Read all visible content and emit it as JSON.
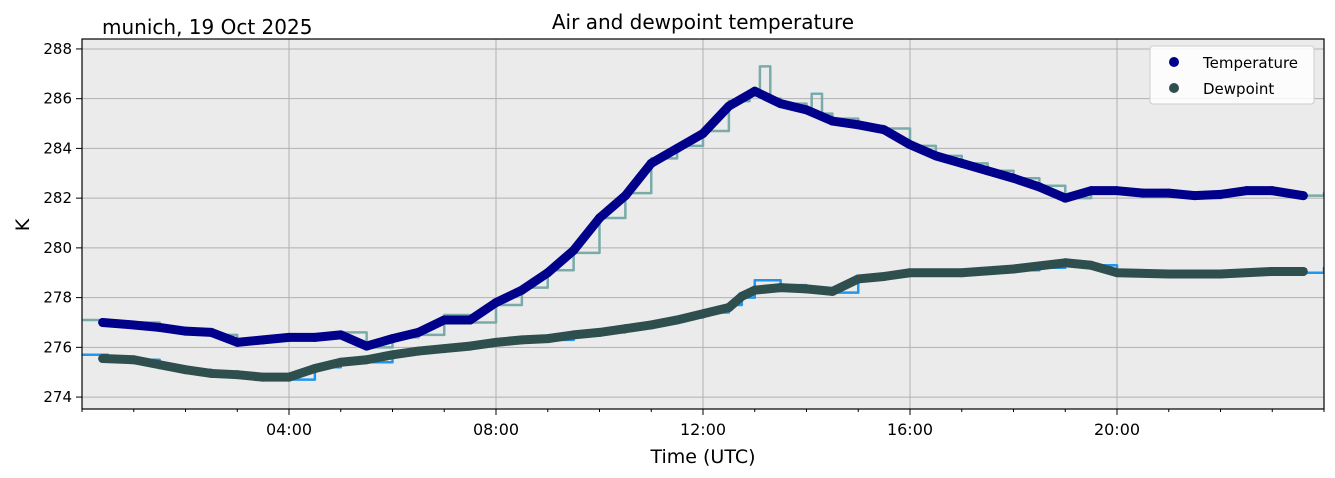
{
  "chart_data": {
    "type": "line",
    "title": "Air and dewpoint temperature",
    "subtitle": "munich, 19 Oct 2025",
    "xlabel": "Time (UTC)",
    "ylabel": "K",
    "xlim": [
      0,
      24
    ],
    "ylim": [
      273.52,
      288.4
    ],
    "grid": true,
    "legend_position": "top-right",
    "x_ticks": [
      {
        "v": 4,
        "label": "04:00"
      },
      {
        "v": 8,
        "label": "08:00"
      },
      {
        "v": 12,
        "label": "12:00"
      },
      {
        "v": 16,
        "label": "16:00"
      },
      {
        "v": 20,
        "label": "20:00"
      }
    ],
    "y_ticks": [
      {
        "v": 274,
        "label": "274"
      },
      {
        "v": 276,
        "label": "276"
      },
      {
        "v": 278,
        "label": "278"
      },
      {
        "v": 280,
        "label": "280"
      },
      {
        "v": 282,
        "label": "282"
      },
      {
        "v": 284,
        "label": "284"
      },
      {
        "v": 286,
        "label": "286"
      },
      {
        "v": 288,
        "label": "288"
      }
    ],
    "series": [
      {
        "name": "Temperature raw",
        "color": "#79abab",
        "legend": false,
        "x": [
          0,
          0.5,
          1,
          1.5,
          2,
          2.5,
          3,
          3.5,
          4,
          4.5,
          5,
          5.5,
          6,
          6.5,
          7,
          7.5,
          8,
          8.5,
          9,
          9.5,
          10,
          10.5,
          11,
          11.5,
          12,
          12.5,
          12.9,
          13.1,
          13.3,
          13.5,
          14,
          14.1,
          14.3,
          14.5,
          15,
          15.5,
          16,
          16.5,
          17,
          17.5,
          18,
          18.5,
          19,
          19.5,
          20,
          20.5,
          21,
          21.5,
          22,
          22.5,
          23,
          23.5,
          24
        ],
        "y": [
          277.1,
          277.0,
          277.0,
          276.7,
          276.7,
          276.5,
          276.2,
          276.4,
          276.4,
          276.4,
          276.6,
          276.0,
          276.4,
          276.5,
          277.3,
          277.0,
          277.7,
          278.4,
          279.1,
          279.8,
          281.2,
          282.2,
          283.6,
          284.1,
          284.7,
          285.9,
          286.2,
          287.3,
          286.0,
          285.8,
          285.6,
          286.2,
          285.4,
          285.2,
          284.9,
          284.8,
          284.1,
          283.7,
          283.4,
          283.1,
          282.8,
          282.5,
          282.0,
          282.3,
          282.3,
          282.2,
          282.2,
          282.0,
          282.2,
          282.3,
          282.2,
          282.1,
          282.2
        ]
      },
      {
        "name": "Dewpoint raw",
        "color": "#2196f0",
        "legend": false,
        "x": [
          0,
          0.5,
          1,
          1.5,
          2,
          2.5,
          3,
          3.5,
          4,
          4.5,
          5,
          5.5,
          6,
          6.5,
          7,
          7.5,
          8,
          8.5,
          9,
          9.5,
          10,
          10.5,
          11,
          11.5,
          12,
          12.5,
          12.75,
          13,
          13.5,
          14,
          14.5,
          15,
          15.5,
          16,
          16.5,
          17,
          17.5,
          18,
          18.5,
          19,
          19.5,
          20,
          20.5,
          21,
          21.5,
          22,
          22.5,
          23,
          23.5,
          24
        ],
        "y": [
          275.7,
          275.5,
          275.5,
          275.2,
          275.1,
          274.9,
          274.9,
          274.7,
          274.7,
          275.2,
          275.5,
          275.4,
          275.8,
          275.9,
          276.0,
          276.1,
          276.2,
          276.4,
          276.3,
          276.6,
          276.6,
          276.8,
          277.0,
          277.2,
          277.4,
          277.7,
          278.0,
          278.7,
          278.5,
          278.3,
          278.2,
          278.8,
          278.9,
          279.0,
          279.0,
          279.0,
          279.1,
          279.1,
          279.2,
          279.4,
          279.3,
          279.0,
          279.0,
          278.9,
          278.9,
          278.9,
          279.0,
          279.0,
          279.0,
          279.2
        ]
      },
      {
        "name": "Temperature",
        "color": "#00008b",
        "legend": true,
        "x": [
          0.4,
          1,
          1.5,
          2,
          2.5,
          3,
          3.5,
          4,
          4.5,
          5,
          5.5,
          6,
          6.5,
          7,
          7.5,
          8,
          8.5,
          9,
          9.5,
          10,
          10.5,
          11,
          11.5,
          12,
          12.5,
          13,
          13.5,
          14,
          14.5,
          15,
          15.5,
          16,
          16.5,
          17,
          17.5,
          18,
          18.5,
          19,
          19.5,
          20,
          20.5,
          21,
          21.5,
          22,
          22.5,
          23,
          23.6
        ],
        "y": [
          277.0,
          276.9,
          276.8,
          276.65,
          276.6,
          276.2,
          276.3,
          276.4,
          276.4,
          276.5,
          276.05,
          276.35,
          276.6,
          277.1,
          277.1,
          277.8,
          278.3,
          279.0,
          279.9,
          281.2,
          282.1,
          283.4,
          284.0,
          284.6,
          285.7,
          286.3,
          285.8,
          285.55,
          285.1,
          284.95,
          284.75,
          284.15,
          283.7,
          283.4,
          283.1,
          282.8,
          282.45,
          282.0,
          282.3,
          282.3,
          282.2,
          282.2,
          282.1,
          282.15,
          282.3,
          282.3,
          282.1
        ]
      },
      {
        "name": "Dewpoint",
        "color": "#2f4f4f",
        "legend": true,
        "x": [
          0.4,
          1,
          1.5,
          2,
          2.5,
          3,
          3.5,
          4,
          4.5,
          5,
          5.5,
          6,
          6.5,
          7,
          7.5,
          8,
          8.5,
          9,
          9.5,
          10,
          10.5,
          11,
          11.5,
          12,
          12.5,
          12.75,
          13,
          13.5,
          14,
          14.5,
          15,
          15.5,
          16,
          17,
          18,
          19,
          19.5,
          20,
          21,
          22,
          23,
          23.6
        ],
        "y": [
          275.55,
          275.5,
          275.3,
          275.1,
          274.95,
          274.9,
          274.8,
          274.8,
          275.15,
          275.4,
          275.5,
          275.7,
          275.85,
          275.95,
          276.05,
          276.2,
          276.3,
          276.35,
          276.5,
          276.6,
          276.75,
          276.9,
          277.1,
          277.35,
          277.6,
          278.05,
          278.3,
          278.4,
          278.35,
          278.25,
          278.75,
          278.85,
          279.0,
          279.0,
          279.15,
          279.4,
          279.3,
          279.0,
          278.95,
          278.95,
          279.05,
          279.05
        ]
      }
    ]
  }
}
